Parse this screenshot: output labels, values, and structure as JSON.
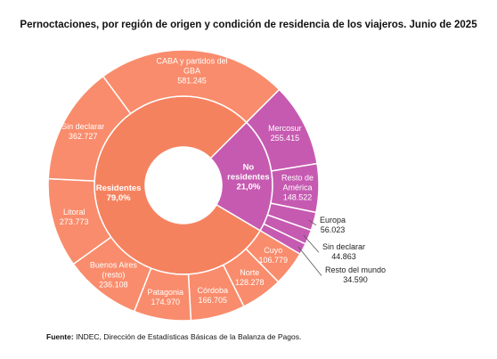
{
  "chart_data": {
    "type": "sunburst",
    "title": "Pernoctaciones, por región de origen y condición de residencia de los viajeros. Junio de 2025",
    "start_angle": 45,
    "groups": [
      {
        "name": "No residentes",
        "value": 21.0,
        "value_label": "21,0%",
        "color": "#c65ab1",
        "child_color": "#c65ab1",
        "children": [
          {
            "name": "Mercosur",
            "value": 255415,
            "value_label": "255.415"
          },
          {
            "name": "Resto de América",
            "value": 148522,
            "value_label": "148.522"
          },
          {
            "name": "Europa",
            "value": 56023,
            "value_label": "56.023"
          },
          {
            "name": "Sin declarar",
            "value": 44863,
            "value_label": "44.863"
          },
          {
            "name": "Resto del mundo",
            "value": 34590,
            "value_label": "34.590"
          }
        ]
      },
      {
        "name": "Residentes",
        "value": 79.0,
        "value_label": "79,0%",
        "color": "#f5825f",
        "child_color": "#f98c6c",
        "children": [
          {
            "name": "Cuyo",
            "value": 106779,
            "value_label": "106.779"
          },
          {
            "name": "Norte",
            "value": 128278,
            "value_label": "128.278"
          },
          {
            "name": "Córdoba",
            "value": 166705,
            "value_label": "166.705"
          },
          {
            "name": "Patagonia",
            "value": 174970,
            "value_label": "174.970"
          },
          {
            "name": "Buenos Aires (resto)",
            "value": 236108,
            "value_label": "236.108"
          },
          {
            "name": "Litoral",
            "value": 273773,
            "value_label": "273.773"
          },
          {
            "name": "Sin declarar",
            "value": 362727,
            "value_label": "362.727"
          },
          {
            "name": "CABA y partidos del GBA",
            "value": 581245,
            "value_label": "581.245"
          }
        ]
      }
    ],
    "source_label": "Fuente:",
    "source": "INDEC, Dirección de Estadísticas Básicas de la Balanza de Pagos."
  }
}
